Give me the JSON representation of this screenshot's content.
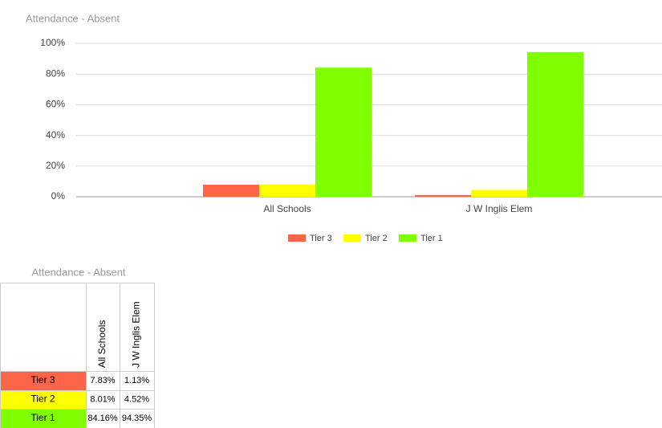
{
  "chart_data": {
    "type": "bar",
    "title": "Attendance - Absent",
    "categories": [
      "All Schools",
      "J W Inglis Elem"
    ],
    "series": [
      {
        "name": "Tier 3",
        "color": "#fd6549",
        "values": [
          7.83,
          1.13
        ],
        "value_labels": [
          "7.83%",
          "1.13%"
        ]
      },
      {
        "name": "Tier 2",
        "color": "#ffff00",
        "values": [
          8.01,
          4.52
        ],
        "value_labels": [
          "8.01%",
          "4.52%"
        ]
      },
      {
        "name": "Tier 1",
        "color": "#7fff00",
        "values": [
          84.16,
          94.35
        ],
        "value_labels": [
          "84.16%",
          "94.35%"
        ]
      }
    ],
    "ylim": [
      0,
      100
    ],
    "yticks": [
      {
        "value": 0,
        "label": "0%"
      },
      {
        "value": 20,
        "label": "20%"
      },
      {
        "value": 40,
        "label": "40%"
      },
      {
        "value": 60,
        "label": "60%"
      },
      {
        "value": 80,
        "label": "80%"
      },
      {
        "value": 100,
        "label": "100%"
      }
    ],
    "grid": true,
    "legend": "bottom"
  }
}
